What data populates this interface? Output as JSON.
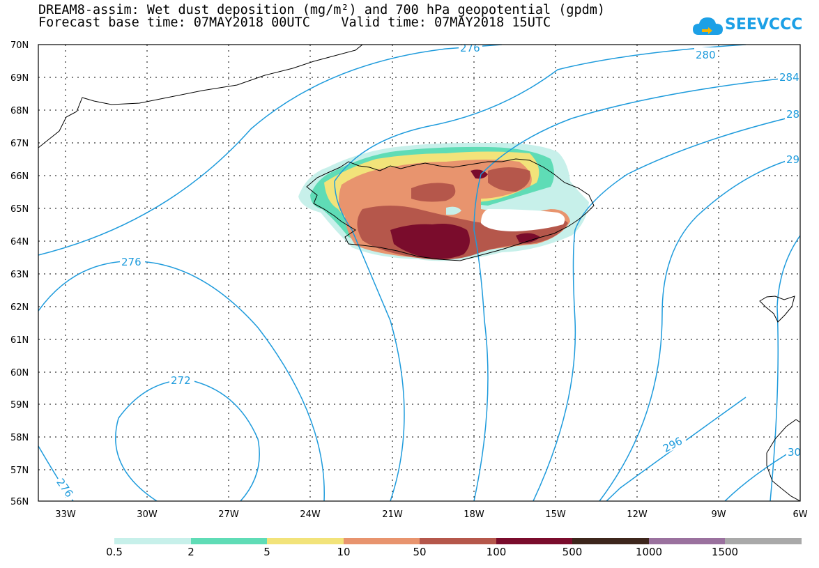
{
  "header": {
    "line1": "DREAM8-assim: Wet dust deposition (mg/m²) and 700 hPa geopotential (gpdm)",
    "line2": "Forecast base time: 07MAY2018 00UTC    Valid time: 07MAY2018 15UTC"
  },
  "logo": {
    "text": "SEEVCCC",
    "color": "#1ca0e6"
  },
  "map": {
    "lat_labels": [
      "70N",
      "69N",
      "68N",
      "67N",
      "66N",
      "65N",
      "64N",
      "63N",
      "62N",
      "61N",
      "60N",
      "59N",
      "58N",
      "57N",
      "56N"
    ],
    "lon_labels": [
      "33W",
      "30W",
      "27W",
      "24W",
      "21W",
      "18W",
      "15W",
      "12W",
      "9W",
      "6W"
    ],
    "contour_color": "#1e9bdc",
    "contour_labels": [
      "276",
      "280",
      "284",
      "28",
      "29",
      "276",
      "272",
      "296",
      "276",
      "30"
    ]
  },
  "colorbar": {
    "colors": [
      "#c7f0ea",
      "#5fdcb6",
      "#f2e37a",
      "#e8946e",
      "#b5574b",
      "#7a0c2c",
      "#3d261c",
      "#9a719e",
      "#a9a9a9"
    ],
    "labels": [
      "0.5",
      "2",
      "5",
      "10",
      "50",
      "100",
      "500",
      "1000",
      "1500"
    ]
  }
}
